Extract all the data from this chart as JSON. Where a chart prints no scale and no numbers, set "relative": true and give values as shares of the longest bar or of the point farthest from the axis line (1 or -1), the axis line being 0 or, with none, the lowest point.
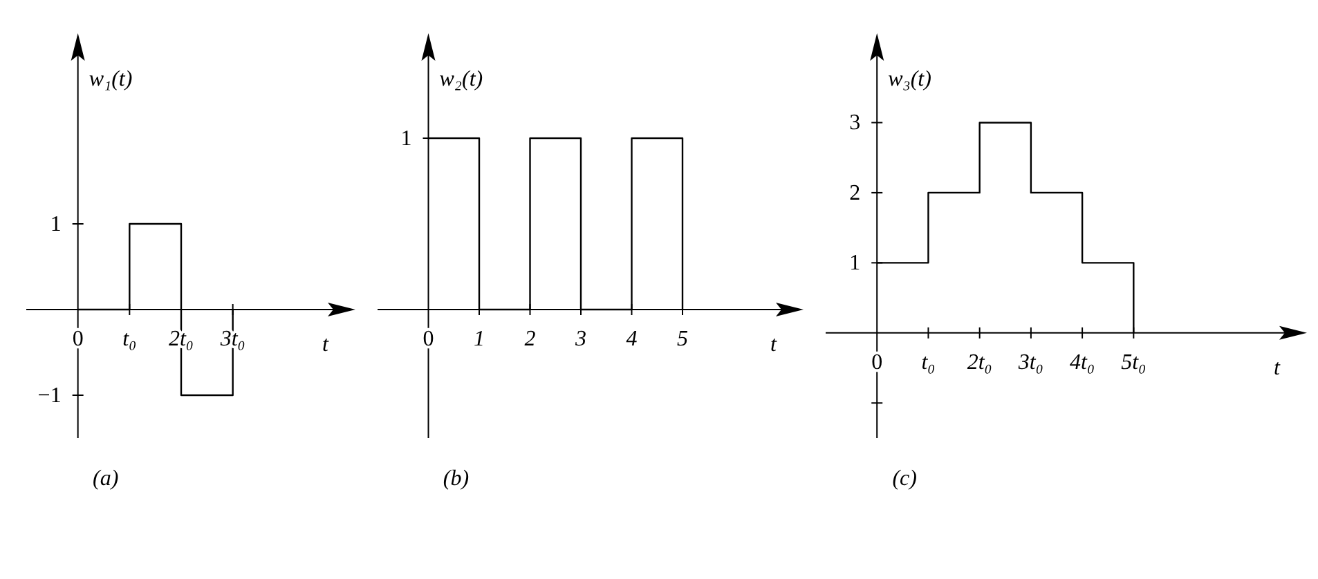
{
  "chart_data": [
    {
      "type": "step",
      "xlabel": "t",
      "ylabel": "w₁(t)",
      "annotations": [
        "(a)"
      ],
      "xlim": [
        -1,
        5
      ],
      "ylim": [
        -1.5,
        3
      ],
      "xticks": [
        0,
        {
          "value": 1,
          "label": "t₀"
        },
        {
          "value": 2,
          "label": "2t₀"
        },
        {
          "value": 3,
          "label": "3t₀"
        }
      ],
      "yticks": [
        1,
        {
          "value": -1,
          "label": "−1"
        }
      ],
      "series": [
        {
          "color": "#000000",
          "x": [
            0,
            1,
            2,
            3
          ],
          "values": [
            0,
            1,
            -1,
            0
          ]
        }
      ]
    },
    {
      "type": "step",
      "relative": true,
      "xlabel": "t",
      "ylabel": "w₂(t)",
      "annotations": [
        "(b)",
        "1"
      ],
      "xlim": [
        -1,
        7
      ],
      "xticks": [
        0,
        1,
        2,
        3,
        4,
        5
      ],
      "series": [
        {
          "color": "#000000",
          "x": [
            0,
            1,
            2,
            3,
            4,
            5
          ],
          "values": [
            1,
            0,
            1,
            0,
            1,
            0
          ]
        }
      ]
    },
    {
      "type": "step",
      "xlabel": "t",
      "ylabel": "w₃(t)",
      "annotations": [
        "(c)"
      ],
      "xlim": [
        -1,
        8
      ],
      "ylim": [
        -1.5,
        4
      ],
      "xticks": [
        0,
        {
          "value": 1,
          "label": "t₀"
        },
        {
          "value": 2,
          "label": "2t₀"
        },
        {
          "value": 3,
          "label": "3t₀"
        },
        {
          "value": 4,
          "label": "4t₀"
        },
        {
          "value": 5,
          "label": "5t₀"
        }
      ],
      "yticks": [
        1,
        2,
        3,
        {
          "value": -1,
          "label": null
        }
      ],
      "series": [
        {
          "color": "#000000",
          "x": [
            0,
            1,
            2,
            3,
            4,
            5
          ],
          "values": [
            1,
            2,
            3,
            2,
            1,
            0
          ]
        }
      ]
    }
  ]
}
